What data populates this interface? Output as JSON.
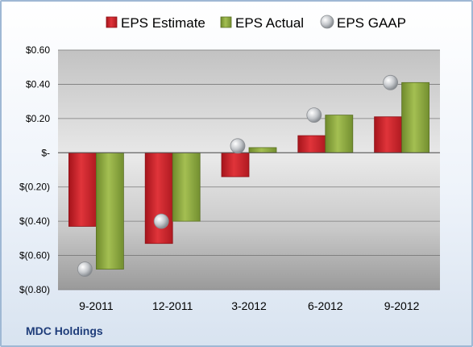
{
  "chart_data": {
    "type": "bar",
    "categories": [
      "9-2011",
      "12-2011",
      "3-2012",
      "6-2012",
      "9-2012"
    ],
    "series": [
      {
        "name": "EPS Estimate",
        "kind": "bar",
        "color": "#cc2229",
        "values": [
          -0.43,
          -0.53,
          -0.14,
          0.1,
          0.21
        ]
      },
      {
        "name": "EPS Actual",
        "kind": "bar",
        "color": "#8aa83c",
        "values": [
          -0.68,
          -0.4,
          0.03,
          0.22,
          0.41
        ]
      },
      {
        "name": "EPS GAAP",
        "kind": "marker",
        "color": "#b5b9be",
        "values": [
          -0.68,
          -0.4,
          0.04,
          0.22,
          0.41
        ]
      }
    ],
    "ylim": [
      -0.8,
      0.6
    ],
    "yticks": [
      0.6,
      0.4,
      0.2,
      0,
      -0.2,
      -0.4,
      -0.6,
      -0.8
    ],
    "ytick_labels": [
      "$0.60",
      "$0.40",
      "$0.20",
      "$-",
      "$(0.20)",
      "$(0.40)",
      "$(0.60)",
      "$(0.80)"
    ],
    "grid": true,
    "legend_position": "top"
  },
  "footer": {
    "company": "MDC Holdings"
  }
}
